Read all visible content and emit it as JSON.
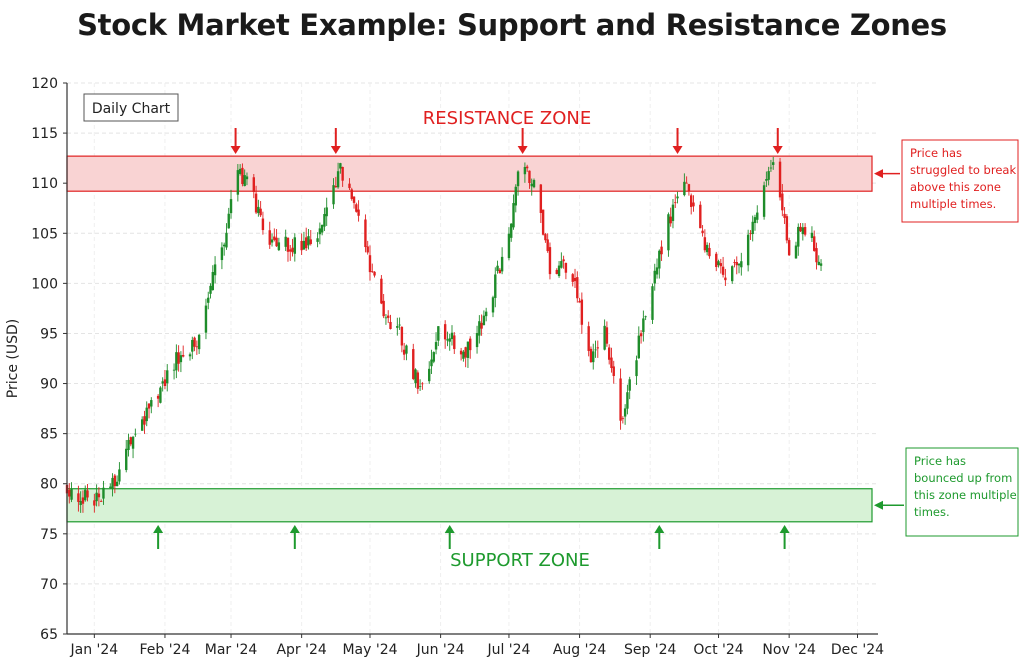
{
  "chart_data": {
    "type": "candlestick",
    "title": "Stock Market Example: Support and Resistance Zones",
    "xlabel": "",
    "ylabel": "Price (USD)",
    "ylim": [
      65,
      120
    ],
    "yticks": [
      65,
      70,
      75,
      80,
      85,
      90,
      95,
      100,
      105,
      110,
      115,
      120
    ],
    "xticks": [
      {
        "label": "Jan '24",
        "date": "2024-01-01"
      },
      {
        "label": "Feb '24",
        "date": "2024-02-01"
      },
      {
        "label": "Mar '24",
        "date": "2024-03-01"
      },
      {
        "label": "Apr '24",
        "date": "2024-04-01"
      },
      {
        "label": "May '24",
        "date": "2024-05-01"
      },
      {
        "label": "Jun '24",
        "date": "2024-06-01"
      },
      {
        "label": "Jul '24",
        "date": "2024-07-01"
      },
      {
        "label": "Aug '24",
        "date": "2024-08-01"
      },
      {
        "label": "Sep '24",
        "date": "2024-09-01"
      },
      {
        "label": "Oct '24",
        "date": "2024-10-01"
      },
      {
        "label": "Nov '24",
        "date": "2024-11-01"
      },
      {
        "label": "Dec '24",
        "date": "2024-12-01"
      }
    ],
    "xlim": [
      "2023-12-20",
      "2024-12-10"
    ],
    "grid": true,
    "badge": "Daily Chart",
    "colors": {
      "up": "#1e8c2a",
      "down": "#e02020",
      "resistance": "#e02020",
      "support": "#1e9a2e"
    },
    "path": [
      [
        "2023-12-20",
        79.5
      ],
      [
        "2023-12-31",
        78.5
      ],
      [
        "2024-01-07",
        78.8
      ],
      [
        "2024-01-16",
        83.5
      ],
      [
        "2024-01-25",
        87.5
      ],
      [
        "2024-02-05",
        92.0
      ],
      [
        "2024-02-15",
        94.5
      ],
      [
        "2024-02-22",
        100.5
      ],
      [
        "2024-02-27",
        104.0
      ],
      [
        "2024-03-04",
        111.5
      ],
      [
        "2024-03-11",
        108.5
      ],
      [
        "2024-03-18",
        103.5
      ],
      [
        "2024-03-28",
        104.0
      ],
      [
        "2024-04-08",
        104.5
      ],
      [
        "2024-04-18",
        111.5
      ],
      [
        "2024-04-27",
        106.0
      ],
      [
        "2024-05-05",
        98.0
      ],
      [
        "2024-05-14",
        95.0
      ],
      [
        "2024-05-23",
        89.5
      ],
      [
        "2024-06-01",
        95.5
      ],
      [
        "2024-06-11",
        93.0
      ],
      [
        "2024-06-21",
        96.5
      ],
      [
        "2024-06-30",
        104.5
      ],
      [
        "2024-07-06",
        111.5
      ],
      [
        "2024-07-12",
        110.0
      ],
      [
        "2024-07-19",
        101.5
      ],
      [
        "2024-07-28",
        102.0
      ],
      [
        "2024-08-06",
        92.0
      ],
      [
        "2024-08-12",
        95.0
      ],
      [
        "2024-08-19",
        86.0
      ],
      [
        "2024-08-27",
        94.0
      ],
      [
        "2024-09-05",
        103.0
      ],
      [
        "2024-09-15",
        110.5
      ],
      [
        "2024-09-26",
        103.5
      ],
      [
        "2024-10-06",
        100.5
      ],
      [
        "2024-10-14",
        104.5
      ],
      [
        "2024-10-25",
        112.0
      ],
      [
        "2024-11-01",
        103.5
      ],
      [
        "2024-11-09",
        106.0
      ],
      [
        "2024-11-16",
        100.5
      ]
    ],
    "resistance_zone": {
      "label": "RESISTANCE ZONE",
      "low": 109.2,
      "high": 112.7
    },
    "support_zone": {
      "label": "SUPPORT ZONE",
      "low": 76.2,
      "high": 79.5
    },
    "resistance_touches": [
      "2024-03-03",
      "2024-04-16",
      "2024-07-07",
      "2024-09-13",
      "2024-10-27"
    ],
    "support_touches": [
      "2024-01-29",
      "2024-03-29",
      "2024-06-05",
      "2024-09-05",
      "2024-10-30"
    ],
    "annotations": {
      "resistance": [
        "Price has",
        "struggled to break",
        "above this zone",
        "multiple times."
      ],
      "support": [
        "Price has",
        "bounced up from",
        "this zone multiple",
        "times."
      ]
    }
  }
}
